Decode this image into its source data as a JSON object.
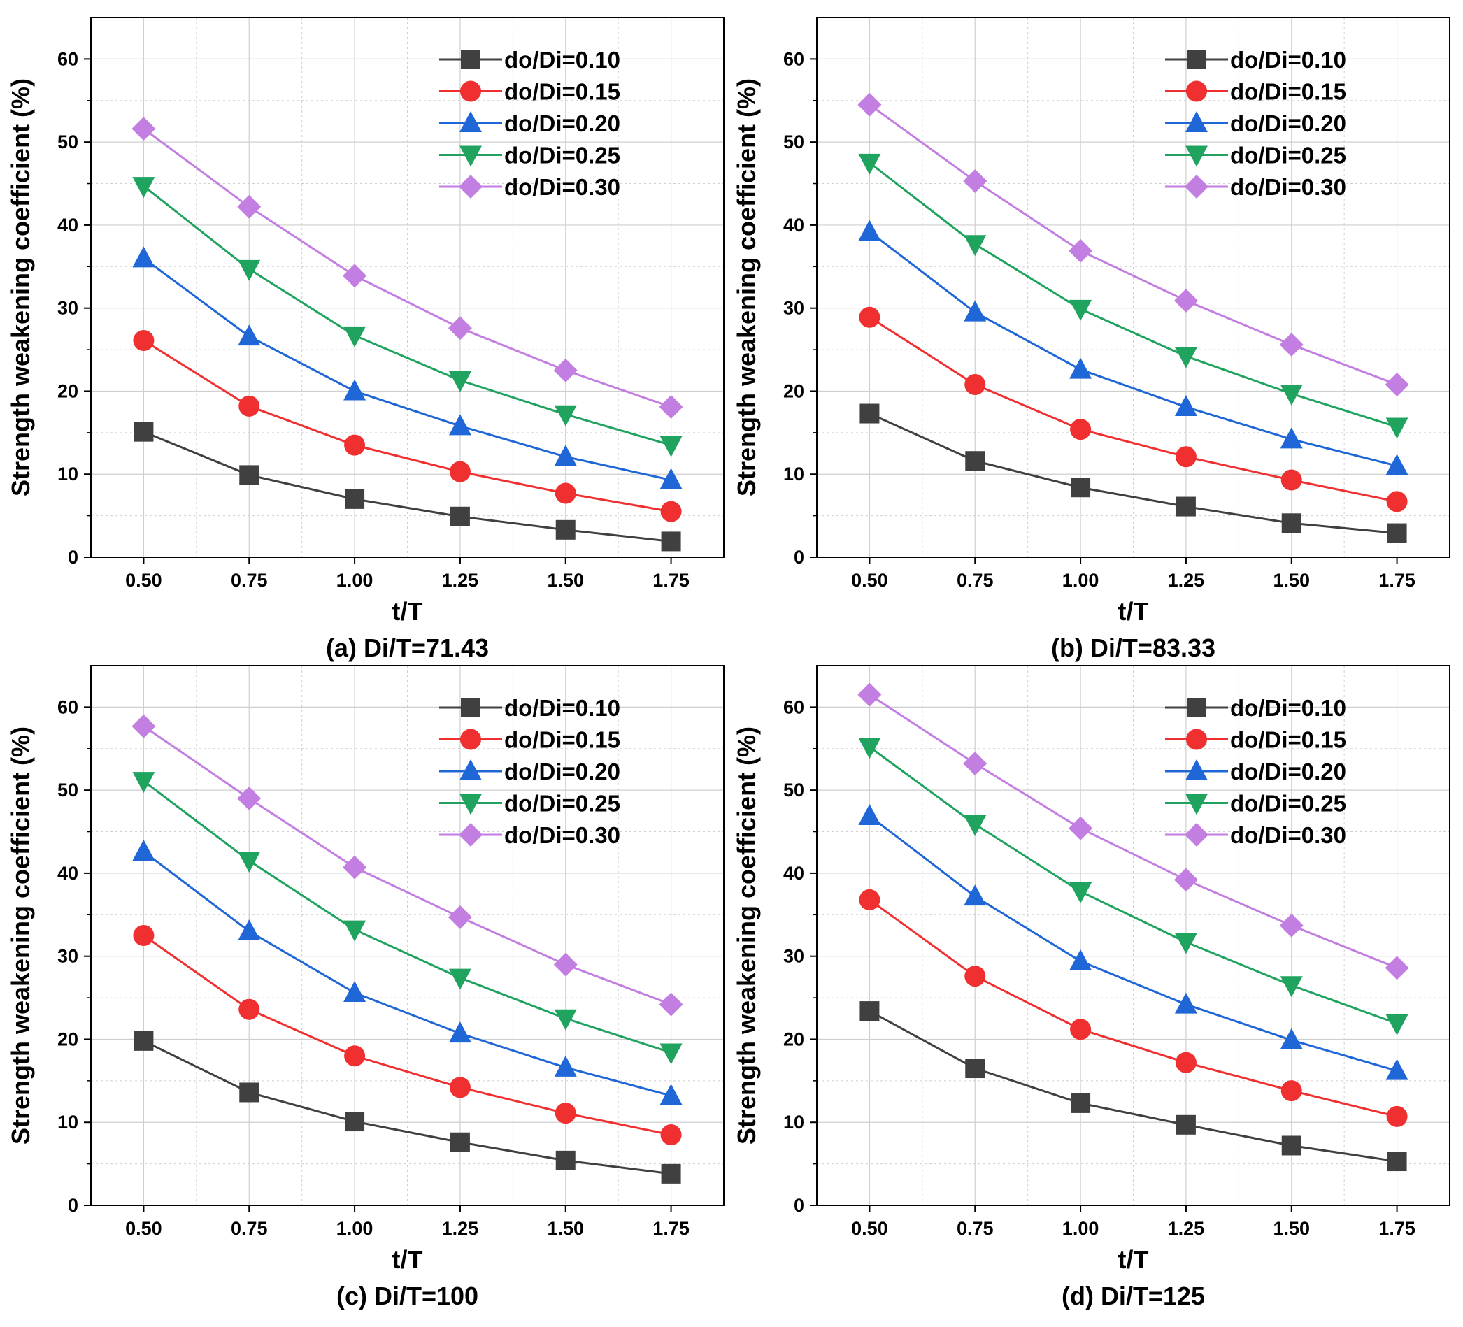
{
  "chart_data": [
    {
      "type": "line",
      "caption": "(a) Di/T=71.43",
      "xlabel": "t/T",
      "ylabel": "Strength weakening coefficient (%)",
      "xlim": [
        0.375,
        1.875
      ],
      "ylim": [
        0,
        65
      ],
      "x": [
        0.5,
        0.75,
        1.0,
        1.25,
        1.5,
        1.75
      ],
      "x_tick_labels": [
        "0.50",
        "0.75",
        "1.00",
        "1.25",
        "1.50",
        "1.75"
      ],
      "y_ticks": [
        0,
        10,
        20,
        30,
        40,
        50,
        60
      ],
      "grid": true,
      "legend_position": "top-right",
      "series": [
        {
          "name": "do/Di=0.10",
          "values": [
            15.1,
            9.9,
            7.0,
            4.9,
            3.3,
            1.9
          ]
        },
        {
          "name": "do/Di=0.15",
          "values": [
            26.1,
            18.2,
            13.5,
            10.3,
            7.7,
            5.5
          ]
        },
        {
          "name": "do/Di=0.20",
          "values": [
            36.0,
            26.6,
            20.0,
            15.8,
            12.1,
            9.3
          ]
        },
        {
          "name": "do/Di=0.25",
          "values": [
            44.7,
            34.7,
            26.7,
            21.3,
            17.2,
            13.5
          ]
        },
        {
          "name": "do/Di=0.30",
          "values": [
            51.6,
            42.2,
            33.9,
            27.6,
            22.5,
            18.1
          ]
        }
      ]
    },
    {
      "type": "line",
      "caption": "(b) Di/T=83.33",
      "xlabel": "t/T",
      "ylabel": "Strength weakening coefficient (%)",
      "xlim": [
        0.375,
        1.875
      ],
      "ylim": [
        0,
        65
      ],
      "x": [
        0.5,
        0.75,
        1.0,
        1.25,
        1.5,
        1.75
      ],
      "x_tick_labels": [
        "0.50",
        "0.75",
        "1.00",
        "1.25",
        "1.50",
        "1.75"
      ],
      "y_ticks": [
        0,
        10,
        20,
        30,
        40,
        50,
        60
      ],
      "grid": true,
      "legend_position": "top-right",
      "series": [
        {
          "name": "do/Di=0.10",
          "values": [
            17.3,
            11.6,
            8.4,
            6.1,
            4.1,
            2.9
          ]
        },
        {
          "name": "do/Di=0.15",
          "values": [
            28.9,
            20.8,
            15.4,
            12.1,
            9.3,
            6.7
          ]
        },
        {
          "name": "do/Di=0.20",
          "values": [
            39.2,
            29.5,
            22.6,
            18.1,
            14.2,
            11.0
          ]
        },
        {
          "name": "do/Di=0.25",
          "values": [
            47.5,
            37.7,
            29.9,
            24.2,
            19.7,
            15.7
          ]
        },
        {
          "name": "do/Di=0.30",
          "values": [
            54.5,
            45.3,
            36.9,
            30.9,
            25.6,
            20.8
          ]
        }
      ]
    },
    {
      "type": "line",
      "caption": "(c) Di/T=100",
      "xlabel": "t/T",
      "ylabel": "Strength weakening coefficient (%)",
      "xlim": [
        0.375,
        1.875
      ],
      "ylim": [
        0,
        65
      ],
      "x": [
        0.5,
        0.75,
        1.0,
        1.25,
        1.5,
        1.75
      ],
      "x_tick_labels": [
        "0.50",
        "0.75",
        "1.00",
        "1.25",
        "1.50",
        "1.75"
      ],
      "y_ticks": [
        0,
        10,
        20,
        30,
        40,
        50,
        60
      ],
      "grid": true,
      "legend_position": "top-right",
      "series": [
        {
          "name": "do/Di=0.10",
          "values": [
            19.8,
            13.6,
            10.1,
            7.6,
            5.4,
            3.8
          ]
        },
        {
          "name": "do/Di=0.15",
          "values": [
            32.5,
            23.6,
            18.0,
            14.2,
            11.1,
            8.5
          ]
        },
        {
          "name": "do/Di=0.20",
          "values": [
            42.6,
            33.0,
            25.6,
            20.7,
            16.6,
            13.2
          ]
        },
        {
          "name": "do/Di=0.25",
          "values": [
            51.1,
            41.5,
            33.2,
            27.4,
            22.5,
            18.4
          ]
        },
        {
          "name": "do/Di=0.30",
          "values": [
            57.7,
            49.0,
            40.7,
            34.7,
            29.0,
            24.2
          ]
        }
      ]
    },
    {
      "type": "line",
      "caption": "(d) Di/T=125",
      "xlabel": "t/T",
      "ylabel": "Strength weakening coefficient (%)",
      "xlim": [
        0.375,
        1.875
      ],
      "ylim": [
        0,
        65
      ],
      "x": [
        0.5,
        0.75,
        1.0,
        1.25,
        1.5,
        1.75
      ],
      "x_tick_labels": [
        "0.50",
        "0.75",
        "1.00",
        "1.25",
        "1.50",
        "1.75"
      ],
      "y_ticks": [
        0,
        10,
        20,
        30,
        40,
        50,
        60
      ],
      "grid": true,
      "legend_position": "top-right",
      "series": [
        {
          "name": "do/Di=0.10",
          "values": [
            23.4,
            16.5,
            12.3,
            9.7,
            7.2,
            5.3
          ]
        },
        {
          "name": "do/Di=0.15",
          "values": [
            36.8,
            27.6,
            21.2,
            17.2,
            13.8,
            10.7
          ]
        },
        {
          "name": "do/Di=0.20",
          "values": [
            46.9,
            37.2,
            29.4,
            24.2,
            19.9,
            16.2
          ]
        },
        {
          "name": "do/Di=0.25",
          "values": [
            55.2,
            45.9,
            37.8,
            31.7,
            26.5,
            21.9
          ]
        },
        {
          "name": "do/Di=0.30",
          "values": [
            61.5,
            53.2,
            45.4,
            39.2,
            33.7,
            28.6
          ]
        }
      ]
    }
  ],
  "series_styles": [
    {
      "marker": "square",
      "color": "#404040"
    },
    {
      "marker": "circle",
      "color": "#f03030"
    },
    {
      "marker": "triangle-up",
      "color": "#1f66d6"
    },
    {
      "marker": "triangle-down",
      "color": "#1fa35f"
    },
    {
      "marker": "diamond",
      "color": "#c27ee0"
    }
  ],
  "colors": {
    "grid": "#cfcfcf",
    "axis": "#000000",
    "background": "#ffffff"
  }
}
